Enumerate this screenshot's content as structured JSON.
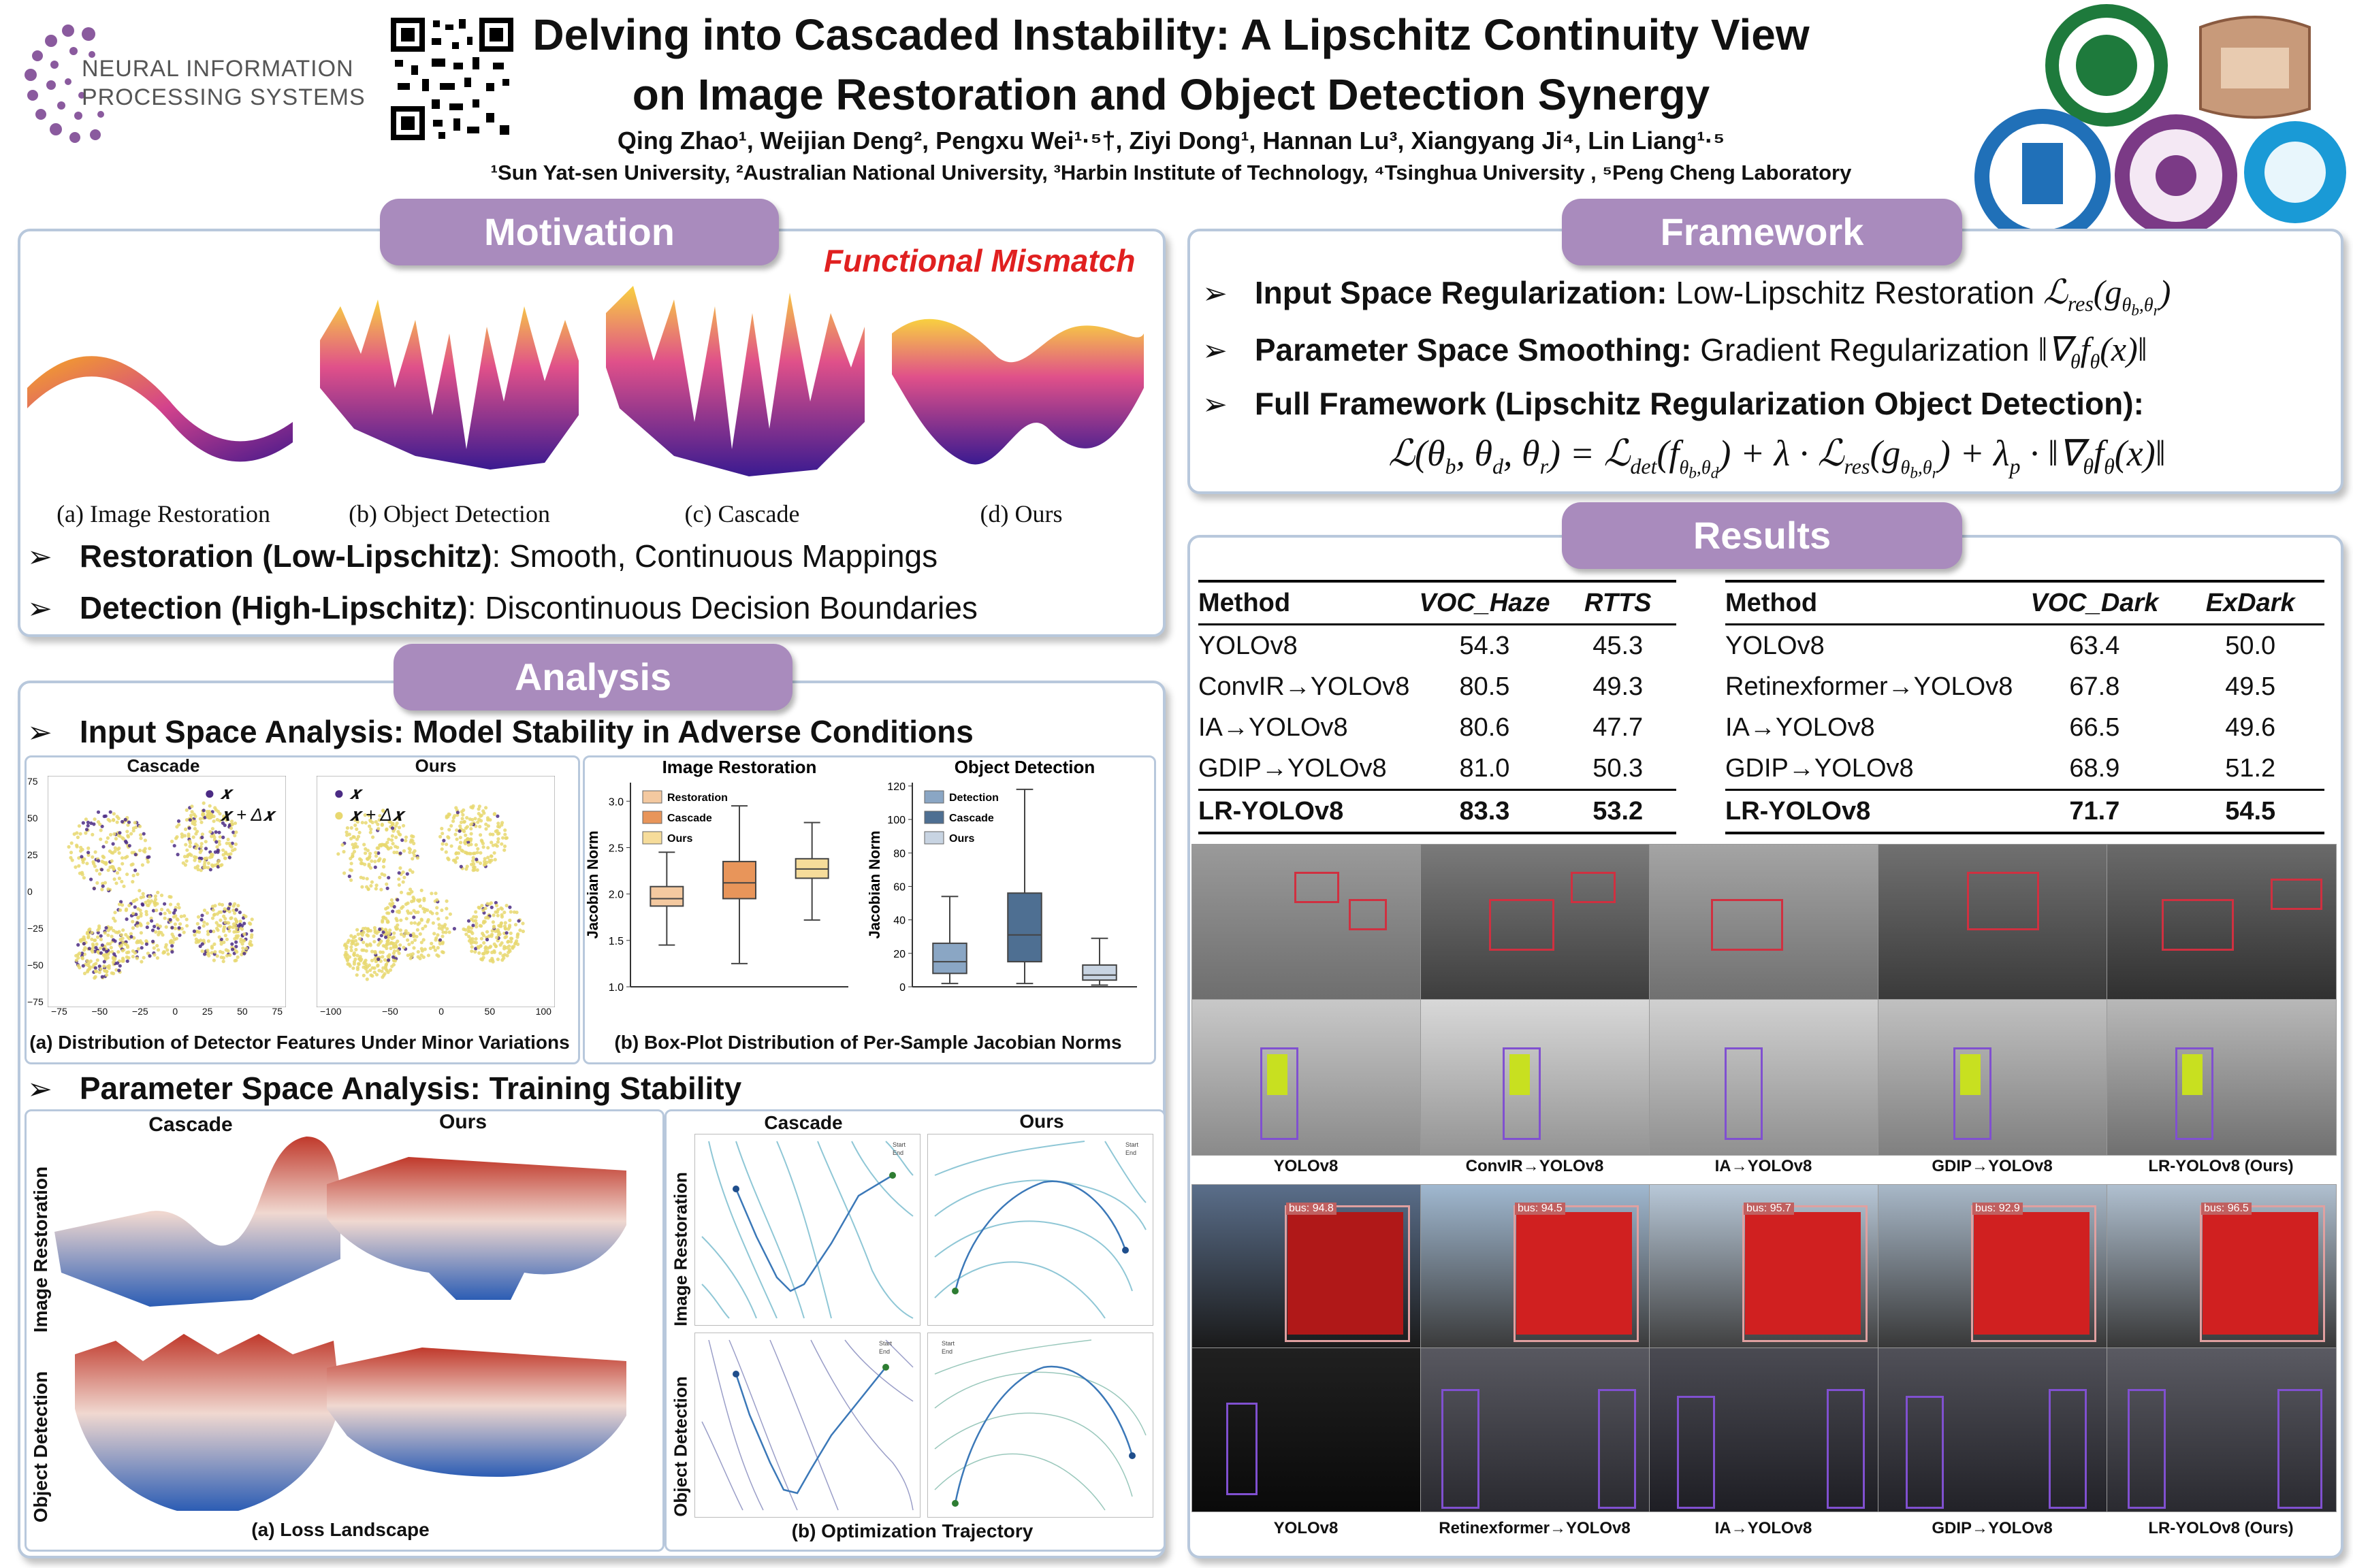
{
  "title": {
    "line1": "Delving into Cascaded Instability: A Lipschitz Continuity View",
    "line2": "on Image Restoration and Object Detection Synergy",
    "authors": "Qing Zhao¹, Weijian Deng², Pengxu Wei¹·⁵†, Ziyi Dong¹, Hannan Lu³, Xiangyang Ji⁴, Lin Liang¹·⁵",
    "affiliations": "¹Sun Yat-sen University, ²Australian National University, ³Harbin Institute of Technology, ⁴Tsinghua University , ⁵Peng Cheng Laboratory"
  },
  "logo": {
    "line1": "NEURAL INFORMATION",
    "line2": "PROCESSING SYSTEMS"
  },
  "motivation": {
    "header": "Motivation",
    "mismatch": "Functional Mismatch",
    "captions": [
      "(a) Image Restoration",
      "(b) Object Detection",
      "(c) Cascade",
      "(d) Ours"
    ],
    "b1_bold": "Restoration (Low-Lipschitz)",
    "b1_rest": ": Smooth, Continuous Mappings",
    "b2_bold": "Detection (High-Lipschitz)",
    "b2_rest": ": Discontinuous Decision Boundaries"
  },
  "analysis": {
    "header": "Analysis",
    "input_title": "Input Space Analysis: Model Stability in Adverse Conditions",
    "tsne": {
      "left_title": "Cascade",
      "right_title": "Ours",
      "legend_x": "𝒙",
      "legend_dx": "𝒙 + Δ𝒙",
      "caption": "(a) Distribution of Detector Features Under Minor Variations",
      "ticks_x": [
        "−75",
        "−50",
        "−25",
        "0",
        "25",
        "50",
        "75"
      ],
      "ticks_x2": [
        "−100",
        "−50",
        "0",
        "50",
        "100"
      ],
      "ticks_y": [
        "75",
        "50",
        "25",
        "0",
        "−25",
        "−50",
        "−75"
      ]
    },
    "box": {
      "caption": "(b) Box-Plot Distribution of Per-Sample Jacobian Norms",
      "ylabel": "Jacobian Norm"
    },
    "param_title": "Parameter Space Analysis: Training Stability",
    "loss": {
      "col1": "Cascade",
      "col2": "Ours",
      "row1": "Image Restoration",
      "row2": "Object Detection",
      "caption": "(a) Loss Landscape"
    },
    "traj": {
      "col1": "Cascade",
      "col2": "Ours",
      "row1": "Image Restoration",
      "row2": "Object Detection",
      "caption": "(b) Optimization Trajectory",
      "start": "Start",
      "end": "End"
    }
  },
  "chart_data": [
    {
      "type": "box",
      "title": "Image Restoration",
      "ylabel": "Jacobian Norm",
      "ylim": [
        1.0,
        3.2
      ],
      "yticks": [
        "1.0",
        "1.5",
        "2.0",
        "2.5",
        "3.0"
      ],
      "series": [
        {
          "name": "Restoration",
          "color": "#f4c9a0",
          "whisker_low": 1.45,
          "q1": 1.87,
          "median": 1.95,
          "q3": 2.08,
          "whisker_high": 2.45
        },
        {
          "name": "Cascade",
          "color": "#e8955a",
          "whisker_low": 1.25,
          "q1": 1.95,
          "median": 2.12,
          "q3": 2.35,
          "whisker_high": 2.95
        },
        {
          "name": "Ours",
          "color": "#f6dc9a",
          "whisker_low": 1.72,
          "q1": 2.17,
          "median": 2.27,
          "q3": 2.38,
          "whisker_high": 2.77
        }
      ]
    },
    {
      "type": "box",
      "title": "Object Detection",
      "ylabel": "Jacobian Norm",
      "ylim": [
        0,
        122
      ],
      "yticks": [
        "0",
        "20",
        "40",
        "60",
        "80",
        "100",
        "120"
      ],
      "series": [
        {
          "name": "Detection",
          "color": "#8aa6c4",
          "whisker_low": 2,
          "q1": 8,
          "median": 15,
          "q3": 26,
          "whisker_high": 54
        },
        {
          "name": "Cascade",
          "color": "#4e6f92",
          "whisker_low": 2,
          "q1": 15,
          "median": 31,
          "q3": 56,
          "whisker_high": 118
        },
        {
          "name": "Ours",
          "color": "#c8d4e2",
          "whisker_low": 1,
          "q1": 4,
          "median": 7,
          "q3": 13,
          "whisker_high": 29
        }
      ]
    }
  ],
  "framework": {
    "header": "Framework",
    "b1_bold": "Input Space Regularization:",
    "b1_rest": " Low-Lipschitz Restoration",
    "b2_bold": "Parameter Space Smoothing:",
    "b2_rest": " Gradient Regularization",
    "b3_bold": "Full Framework (Lipschitz Regularization Object Detection):",
    "eq1": "ℒres(gθb,θr)",
    "eq2": "‖∇θ fθ(x)‖",
    "full_eq": "ℒ(θb, θd, θr) = ℒdet(fθb,θd) + λ · ℒres(gθb,θr) + λp · ‖∇θ fθ(x)‖"
  },
  "results": {
    "header": "Results",
    "table1": {
      "headers": [
        "Method",
        "VOC_Haze",
        "RTTS"
      ],
      "rows": [
        [
          "YOLOv8",
          "54.3",
          "45.3"
        ],
        [
          "ConvIR→YOLOv8",
          "80.5",
          "49.3"
        ],
        [
          "IA→YOLOv8",
          "80.6",
          "47.7"
        ],
        [
          "GDIP→YOLOv8",
          "81.0",
          "50.3"
        ],
        [
          "LR-YOLOv8",
          "83.3",
          "53.2"
        ]
      ]
    },
    "table2": {
      "headers": [
        "Method",
        "VOC_Dark",
        "ExDark"
      ],
      "rows": [
        [
          "YOLOv8",
          "63.4",
          "50.0"
        ],
        [
          "Retinexformer→YOLOv8",
          "67.8",
          "49.5"
        ],
        [
          "IA→YOLOv8",
          "66.5",
          "49.6"
        ],
        [
          "GDIP→YOLOv8",
          "68.9",
          "51.2"
        ],
        [
          "LR-YOLOv8",
          "71.7",
          "54.5"
        ]
      ]
    },
    "haze_labels": [
      "YOLOv8",
      "ConvIR→YOLOv8",
      "IA→YOLOv8",
      "GDIP→YOLOv8",
      "LR-YOLOv8 (Ours)"
    ],
    "dark_labels": [
      "YOLOv8",
      "Retinexformer→YOLOv8",
      "IA→YOLOv8",
      "GDIP→YOLOv8",
      "LR-YOLOv8 (Ours)"
    ],
    "bus_scores": [
      "bus: 94.8",
      "bus: 94.5",
      "bus: 95.7",
      "bus: 92.9",
      "bus: 96.5"
    ]
  },
  "colors": {
    "accent": "#a98bbd",
    "border": "#b8c8dc",
    "mismatch": "#e02020"
  }
}
